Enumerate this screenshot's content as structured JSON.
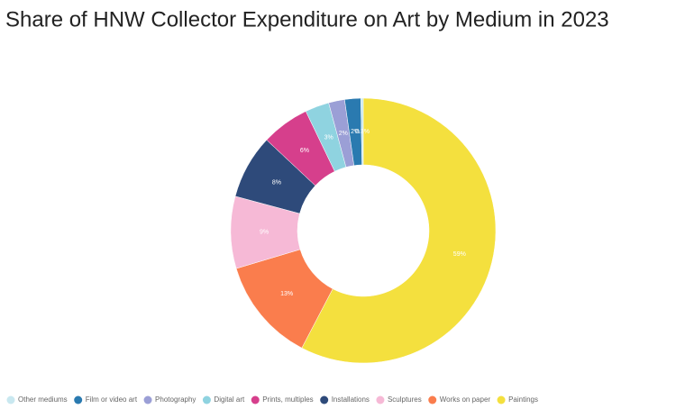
{
  "chart_data": {
    "type": "donut",
    "title": "Share of HNW Collector Expenditure on Art by Medium in 2023",
    "categories": [
      "Other mediums",
      "Film or video art",
      "Photography",
      "Digital art",
      "Prints, multiples",
      "Installations",
      "Sculptures",
      "Works on paper",
      "Paintings"
    ],
    "values": [
      0.3,
      2,
      2,
      3,
      6,
      8,
      9,
      13,
      59
    ],
    "value_labels": [
      "0.3%",
      "2%",
      "2%",
      "3%",
      "6%",
      "8%",
      "9%",
      "13%",
      "59%"
    ],
    "colors": [
      "#c9e8f0",
      "#2a7ab0",
      "#9b9fd6",
      "#8fd3e0",
      "#d63f8c",
      "#2e4a7a",
      "#f6b9d6",
      "#fa7d4d",
      "#f4e03e"
    ]
  }
}
